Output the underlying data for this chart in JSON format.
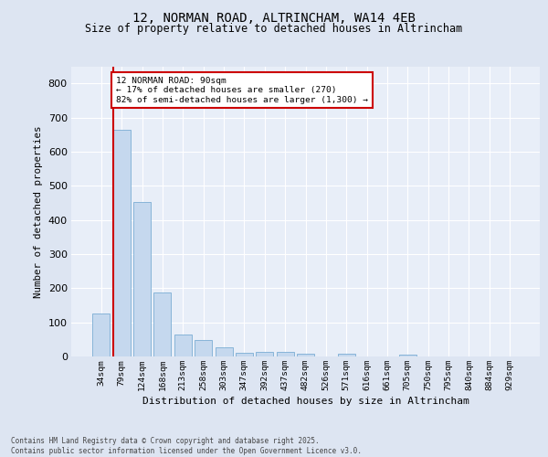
{
  "title_line1": "12, NORMAN ROAD, ALTRINCHAM, WA14 4EB",
  "title_line2": "Size of property relative to detached houses in Altrincham",
  "xlabel": "Distribution of detached houses by size in Altrincham",
  "ylabel": "Number of detached properties",
  "categories": [
    "34sqm",
    "79sqm",
    "124sqm",
    "168sqm",
    "213sqm",
    "258sqm",
    "303sqm",
    "347sqm",
    "392sqm",
    "437sqm",
    "482sqm",
    "526sqm",
    "571sqm",
    "616sqm",
    "661sqm",
    "705sqm",
    "750sqm",
    "795sqm",
    "840sqm",
    "884sqm",
    "929sqm"
  ],
  "values": [
    127,
    665,
    453,
    187,
    65,
    48,
    28,
    12,
    14,
    13,
    7,
    0,
    7,
    0,
    0,
    5,
    0,
    0,
    0,
    0,
    0
  ],
  "bar_color": "#c5d8ee",
  "bar_edge_color": "#7aadd4",
  "vline_color": "#cc0000",
  "vline_x_index": 1,
  "annotation_title": "12 NORMAN ROAD: 90sqm",
  "annotation_line2": "← 17% of detached houses are smaller (270)",
  "annotation_line3": "82% of semi-detached houses are larger (1,300) →",
  "annotation_box_edgecolor": "#cc0000",
  "ylim": [
    0,
    850
  ],
  "yticks": [
    0,
    100,
    200,
    300,
    400,
    500,
    600,
    700,
    800
  ],
  "footer_line1": "Contains HM Land Registry data © Crown copyright and database right 2025.",
  "footer_line2": "Contains public sector information licensed under the Open Government Licence v3.0.",
  "bg_color": "#dde5f2",
  "plot_bg_color": "#e8eef8",
  "grid_color": "#ffffff"
}
